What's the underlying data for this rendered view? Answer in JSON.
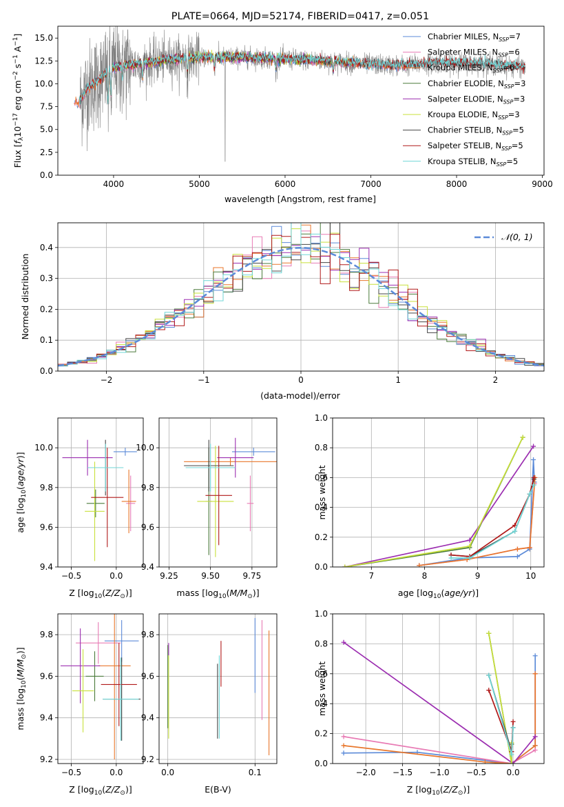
{
  "figure": {
    "title": "PLATE=0664, MJD=52174, FIBERID=0417, z=0.051"
  },
  "model_colors": {
    "Chabrier MILES": "#5b8ad8",
    "Salpeter MILES": "#e87ab4",
    "Kroupa MILES": "#e8762a",
    "Chabrier ELODIE": "#4a7a3a",
    "Salpeter ELODIE": "#9b2db0",
    "Kroupa ELODIE": "#c8e03a",
    "Chabrier STELIB": "#444444",
    "Salpeter STELIB": "#b01818",
    "Kroupa STELIB": "#6fd6d6",
    "data_spectrum": "#808080"
  },
  "chart_data": [
    {
      "type": "line",
      "name": "spectrum",
      "title": "PLATE=0664, MJD=52174, FIBERID=0417, z=0.051",
      "xlabel": "wavelength [Angstrom, rest frame]",
      "ylabel": "Flux [f_λ 10^-17 erg cm^-2 s^-1 A^-1]",
      "xlim": [
        3350,
        9020
      ],
      "ylim": [
        0,
        16.3
      ],
      "xticks": [
        "4000",
        "5000",
        "6000",
        "7000",
        "8000",
        "9000"
      ],
      "yticks": [
        "0.0",
        "2.5",
        "5.0",
        "7.5",
        "10.0",
        "12.5",
        "15.0"
      ],
      "legend_position": "right",
      "legend": [
        {
          "label": "Chabrier MILES, N",
          "sub": "SSP",
          "suffix": "=7"
        },
        {
          "label": "Salpeter MILES, N",
          "sub": "SSP",
          "suffix": "=6"
        },
        {
          "label": "Kroupa MILES, N",
          "sub": "SSP",
          "suffix": "=6"
        },
        {
          "label": "Chabrier ELODIE, N",
          "sub": "SSP",
          "suffix": "=3"
        },
        {
          "label": "Salpeter ELODIE, N",
          "sub": "SSP",
          "suffix": "=3"
        },
        {
          "label": "Kroupa ELODIE, N",
          "sub": "SSP",
          "suffix": "=3"
        },
        {
          "label": "Chabrier STELIB, N",
          "sub": "SSP",
          "suffix": "=5"
        },
        {
          "label": "Salpeter STELIB, N",
          "sub": "SSP",
          "suffix": "=5"
        },
        {
          "label": "Kroupa STELIB, N",
          "sub": "SSP",
          "suffix": "=5"
        }
      ],
      "continuum": [
        [
          3600,
          8.0
        ],
        [
          3700,
          9.6
        ],
        [
          3800,
          10.2
        ],
        [
          3900,
          11.0
        ],
        [
          4000,
          11.8
        ],
        [
          4300,
          12.2
        ],
        [
          4600,
          12.6
        ],
        [
          5000,
          12.9
        ],
        [
          5500,
          12.9
        ],
        [
          6000,
          12.7
        ],
        [
          6500,
          12.5
        ],
        [
          7000,
          12.1
        ],
        [
          7400,
          12.0
        ],
        [
          7800,
          12.3
        ],
        [
          8300,
          12.2
        ],
        [
          8800,
          11.8
        ]
      ]
    },
    {
      "type": "area",
      "name": "residual_histogram",
      "xlabel": "(data-model)/error",
      "ylabel": "Normed distribution",
      "xlim": [
        -2.5,
        2.5
      ],
      "ylim": [
        0,
        0.48
      ],
      "xticks": [
        "−2",
        "−1",
        "0",
        "1",
        "2"
      ],
      "yticks": [
        "0.0",
        "0.1",
        "0.2",
        "0.3",
        "0.4"
      ],
      "bin_width": 0.1,
      "legend_position": "top-right",
      "reference_curve": {
        "label": "𝒩(0, 1)",
        "mean": 0,
        "sigma": 1
      }
    },
    {
      "type": "scatter",
      "name": "age_vs_Z",
      "xlabel": "Z [log10(Z/Z☉)]",
      "ylabel": "age [log10(age/yr)]",
      "xlim": [
        -0.65,
        0.3
      ],
      "ylim": [
        9.4,
        10.15
      ],
      "xticks": [
        "−0.5",
        "0.0"
      ],
      "yticks": [
        "9.4",
        "9.6",
        "9.8",
        "10.0"
      ],
      "points": [
        {
          "model": "Chabrier MILES",
          "x": 0.1,
          "xerr": 0.13,
          "y": 9.98,
          "yerr": 0.02
        },
        {
          "model": "Salpeter MILES",
          "x": 0.16,
          "xerr": 0.05,
          "y": 9.72,
          "yerr": 0.14
        },
        {
          "model": "Kroupa MILES",
          "x": 0.14,
          "xerr": 0.08,
          "y": 9.73,
          "yerr": 0.16
        },
        {
          "model": "Chabrier ELODIE",
          "x": -0.23,
          "xerr": 0.1,
          "y": 9.72,
          "yerr": 0.07
        },
        {
          "model": "Salpeter ELODIE",
          "x": -0.32,
          "xerr": 0.28,
          "y": 9.95,
          "yerr": 0.09
        },
        {
          "model": "Kroupa ELODIE",
          "x": -0.24,
          "xerr": 0.11,
          "y": 9.68,
          "yerr": 0.25
        },
        {
          "model": "Chabrier STELIB",
          "x": -0.12,
          "xerr": 0.18,
          "y": 9.9,
          "yerr": 0.14
        },
        {
          "model": "Salpeter STELIB",
          "x": -0.1,
          "xerr": 0.18,
          "y": 9.75,
          "yerr": 0.25
        },
        {
          "model": "Kroupa STELIB",
          "x": -0.12,
          "xerr": 0.2,
          "y": 9.9,
          "yerr": 0.12
        }
      ]
    },
    {
      "type": "scatter",
      "name": "age_vs_mass",
      "xlabel": "mass [log10(M/M☉)]",
      "ylabel": "",
      "xlim": [
        9.19,
        9.9
      ],
      "ylim": [
        9.4,
        10.15
      ],
      "xticks": [
        "9.25",
        "9.50",
        "9.75"
      ],
      "yticks": [
        "9.4",
        "9.6",
        "9.8",
        "10.0"
      ],
      "points": [
        {
          "model": "Chabrier MILES",
          "x": 9.76,
          "xerr": 0.13,
          "y": 9.98,
          "yerr": 0.02
        },
        {
          "model": "Salpeter MILES",
          "x": 9.74,
          "xerr": 0.02,
          "y": 9.72,
          "yerr": 0.14
        },
        {
          "model": "Kroupa MILES",
          "x": 9.62,
          "xerr": 0.28,
          "y": 9.93,
          "yerr": 0.02
        },
        {
          "model": "Chabrier ELODIE",
          "x": 9.49,
          "xerr": 0.02,
          "y": 9.73,
          "yerr": 0.27
        },
        {
          "model": "Salpeter ELODIE",
          "x": 9.65,
          "xerr": 0.11,
          "y": 9.95,
          "yerr": 0.1
        },
        {
          "model": "Kroupa ELODIE",
          "x": 9.53,
          "xerr": 0.11,
          "y": 9.73,
          "yerr": 0.28
        },
        {
          "model": "Chabrier STELIB",
          "x": 9.49,
          "xerr": 0.15,
          "y": 9.91,
          "yerr": 0.13
        },
        {
          "model": "Salpeter STELIB",
          "x": 9.55,
          "xerr": 0.08,
          "y": 9.76,
          "yerr": 0.25
        },
        {
          "model": "Kroupa STELIB",
          "x": 9.5,
          "xerr": 0.15,
          "y": 9.9,
          "yerr": 0.12
        }
      ]
    },
    {
      "type": "line",
      "name": "massweight_vs_age",
      "xlabel": "age [log10(age/yr)]",
      "ylabel": "mass weight",
      "xlim": [
        6.27,
        10.25
      ],
      "ylim": [
        0,
        1.0
      ],
      "xticks": [
        "7",
        "8",
        "9",
        "10"
      ],
      "yticks": [
        "0.0",
        "0.2",
        "0.4",
        "0.6",
        "0.8",
        "1.0"
      ],
      "series": [
        {
          "model": "Chabrier MILES",
          "x": [
            7.9,
            8.8,
            9.75,
            9.98,
            10.05,
            10.07
          ],
          "y": [
            0.01,
            0.06,
            0.07,
            0.12,
            0.72,
            0.57
          ]
        },
        {
          "model": "Salpeter MILES",
          "x": [
            7.9,
            8.8,
            9.75,
            9.98,
            10.07
          ],
          "y": [
            0.01,
            0.05,
            0.12,
            0.13,
            0.56
          ]
        },
        {
          "model": "Kroupa MILES",
          "x": [
            7.9,
            8.8,
            9.75,
            9.98,
            10.08
          ],
          "y": [
            0.01,
            0.05,
            0.12,
            0.13,
            0.6
          ]
        },
        {
          "model": "Chabrier ELODIE",
          "x": [
            6.5,
            8.85,
            9.85
          ],
          "y": [
            0.0,
            0.13,
            0.87
          ]
        },
        {
          "model": "Salpeter ELODIE",
          "x": [
            6.5,
            8.85,
            10.05
          ],
          "y": [
            0.0,
            0.18,
            0.81
          ]
        },
        {
          "model": "Kroupa ELODIE",
          "x": [
            6.5,
            8.85,
            9.85
          ],
          "y": [
            0.0,
            0.14,
            0.87
          ]
        },
        {
          "model": "Chabrier STELIB",
          "x": [
            8.5,
            8.85,
            9.7,
            9.98,
            10.06
          ],
          "y": [
            0.08,
            0.07,
            0.24,
            0.49,
            0.59
          ]
        },
        {
          "model": "Salpeter STELIB",
          "x": [
            8.5,
            8.85,
            9.7,
            9.98,
            10.06
          ],
          "y": [
            0.08,
            0.07,
            0.28,
            0.49,
            0.6
          ]
        },
        {
          "model": "Kroupa STELIB",
          "x": [
            8.5,
            8.85,
            9.7,
            9.98,
            10.06
          ],
          "y": [
            0.06,
            0.06,
            0.24,
            0.49,
            0.55
          ]
        }
      ]
    },
    {
      "type": "scatter",
      "name": "mass_vs_Z",
      "xlabel": "Z [log10(Z/Z☉)]",
      "ylabel": "mass [log10(M/M☉)]",
      "xlim": [
        -0.65,
        0.3
      ],
      "ylim": [
        9.18,
        9.9
      ],
      "xticks": [
        "−0.5",
        "0.0"
      ],
      "yticks": [
        "9.2",
        "9.4",
        "9.6",
        "9.8"
      ],
      "points": [
        {
          "model": "Chabrier MILES",
          "x": 0.06,
          "xerr": 0.19,
          "y": 9.77,
          "yerr": 0.1
        },
        {
          "model": "Salpeter MILES",
          "x": -0.2,
          "xerr": 0.25,
          "y": 9.76,
          "yerr": 0.1
        },
        {
          "model": "Kroupa MILES",
          "x": -0.02,
          "xerr": 0.18,
          "y": 9.65,
          "yerr": 0.45
        },
        {
          "model": "Chabrier ELODIE",
          "x": -0.24,
          "xerr": 0.1,
          "y": 9.6,
          "yerr": 0.12
        },
        {
          "model": "Salpeter ELODIE",
          "x": -0.4,
          "xerr": 0.22,
          "y": 9.65,
          "yerr": 0.18
        },
        {
          "model": "Kroupa ELODIE",
          "x": -0.37,
          "xerr": 0.12,
          "y": 9.53,
          "yerr": 0.2
        },
        {
          "model": "Chabrier STELIB",
          "x": 0.06,
          "xerr": 0.21,
          "y": 9.49,
          "yerr": 0.2
        },
        {
          "model": "Salpeter STELIB",
          "x": 0.03,
          "xerr": 0.2,
          "y": 9.56,
          "yerr": 0.2
        },
        {
          "model": "Kroupa STELIB",
          "x": 0.05,
          "xerr": 0.2,
          "y": 9.49,
          "yerr": 0.2
        }
      ]
    },
    {
      "type": "scatter",
      "name": "mass_vs_ebv",
      "xlabel": "E(B-V)",
      "ylabel": "",
      "xlim": [
        -0.01,
        0.125
      ],
      "ylim": [
        9.18,
        9.9
      ],
      "xticks": [
        "0.0",
        "0.1"
      ],
      "yticks": [
        "9.2",
        "9.4",
        "9.6",
        "9.8"
      ],
      "points": [
        {
          "model": "Chabrier MILES",
          "x": 0.1,
          "y": 9.7,
          "yerr": 0.18
        },
        {
          "model": "Salpeter MILES",
          "x": 0.108,
          "y": 9.63,
          "yerr": 0.24
        },
        {
          "model": "Kroupa MILES",
          "x": 0.116,
          "y": 9.52,
          "yerr": 0.3
        },
        {
          "model": "Chabrier ELODIE",
          "x": 0.0,
          "y": 9.55,
          "yerr": 0.2
        },
        {
          "model": "Salpeter ELODIE",
          "x": 0.001,
          "y": 9.73,
          "yerr": 0.03
        },
        {
          "model": "Kroupa ELODIE",
          "x": 0.001,
          "y": 9.5,
          "yerr": 0.2
        },
        {
          "model": "Chabrier STELIB",
          "x": 0.057,
          "y": 9.48,
          "yerr": 0.18
        },
        {
          "model": "Salpeter STELIB",
          "x": 0.061,
          "y": 9.66,
          "yerr": 0.11
        },
        {
          "model": "Kroupa STELIB",
          "x": 0.059,
          "y": 9.5,
          "yerr": 0.2
        }
      ]
    },
    {
      "type": "line",
      "name": "massweight_vs_Z",
      "xlabel": "Z [log10(Z/Z☉)]",
      "ylabel": "mass weight",
      "xlim": [
        -2.45,
        0.42
      ],
      "ylim": [
        0,
        1.0
      ],
      "xticks": [
        "−2.0",
        "−1.5",
        "−1.0",
        "−0.5",
        "0.0"
      ],
      "yticks": [
        "0.0",
        "0.2",
        "0.4",
        "0.6",
        "0.8",
        "1.0"
      ],
      "series": [
        {
          "model": "Chabrier MILES",
          "x": [
            -2.3,
            -1.3,
            -0.02,
            0.3,
            0.3
          ],
          "y": [
            0.07,
            0.075,
            0.0,
            0.12,
            0.72
          ]
        },
        {
          "model": "Salpeter MILES",
          "x": [
            -2.3,
            -0.02,
            0.3,
            0.3
          ],
          "y": [
            0.18,
            0.0,
            0.09,
            0.6
          ]
        },
        {
          "model": "Kroupa MILES",
          "x": [
            -2.3,
            -0.38,
            -0.02,
            0.3,
            0.3
          ],
          "y": [
            0.12,
            0.01,
            0.0,
            0.12,
            0.6
          ]
        },
        {
          "model": "Chabrier ELODIE",
          "x": [
            -0.33,
            -0.02,
            -0.02
          ],
          "y": [
            0.87,
            0.0,
            0.13
          ]
        },
        {
          "model": "Salpeter ELODIE",
          "x": [
            -2.3,
            0.0,
            0.3
          ],
          "y": [
            0.81,
            0.0,
            0.18
          ]
        },
        {
          "model": "Kroupa ELODIE",
          "x": [
            -0.33,
            -0.02,
            -0.02
          ],
          "y": [
            0.87,
            0.0,
            0.14
          ]
        },
        {
          "model": "Chabrier STELIB",
          "x": [
            -0.33,
            -0.02,
            0.0
          ],
          "y": [
            0.59,
            0.08,
            0.24
          ]
        },
        {
          "model": "Salpeter STELIB",
          "x": [
            -0.33,
            -0.02,
            0.0
          ],
          "y": [
            0.49,
            0.08,
            0.28
          ]
        },
        {
          "model": "Kroupa STELIB",
          "x": [
            -0.33,
            -0.02,
            0.0
          ],
          "y": [
            0.59,
            0.06,
            0.24
          ]
        }
      ]
    }
  ]
}
